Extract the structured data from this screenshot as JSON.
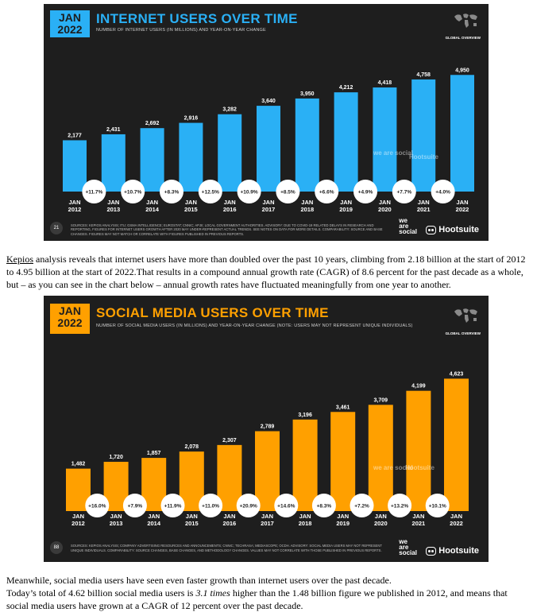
{
  "chart_data": [
    {
      "type": "bar",
      "badge": [
        "JAN",
        "2022"
      ],
      "title": "INTERNET USERS OVER TIME",
      "subtitle": "NUMBER OF INTERNET USERS (IN MILLIONS) AND YEAR-ON-YEAR CHANGE",
      "corner_label": "GLOBAL OVERVIEW",
      "categories": [
        "JAN 2012",
        "JAN 2013",
        "JAN 2014",
        "JAN 2015",
        "JAN 2016",
        "JAN 2017",
        "JAN 2018",
        "JAN 2019",
        "JAN 2020",
        "JAN 2021",
        "JAN 2022"
      ],
      "values": [
        2177,
        2431,
        2692,
        2916,
        3282,
        3640,
        3950,
        4212,
        4418,
        4758,
        4950
      ],
      "value_labels": [
        "2,177",
        "2,431",
        "2,692",
        "2,916",
        "3,282",
        "3,640",
        "3,950",
        "4,212",
        "4,418",
        "4,758",
        "4,950"
      ],
      "yoy_change": [
        "+11.7%",
        "+10.7%",
        "+8.3%",
        "+12.5%",
        "+10.9%",
        "+8.5%",
        "+6.6%",
        "+4.9%",
        "+7.7%",
        "+4.0%"
      ],
      "bar_color": "#2ab0f5",
      "ylim": [
        0,
        5600
      ],
      "page_number": "21",
      "footer_sources": "SOURCES: KEPIOS ANALYSIS; ITU; GSMA INTELLIGENCE; EUROSTAT; CNNIC; APJII; LOCAL GOVERNMENT AUTHORITIES. ADVISORY: DUE TO COVID-19 RELATED DELAYS IN RESEARCH AND REPORTING, FIGURES FOR INTERNET USERS GROWTH AFTER 2020 MAY UNDER-REPRESENT ACTUAL TRENDS. SEE NOTES ON DATA FOR MORE DETAILS. COMPARABILITY: SOURCE AND BASE CHANGES. FIGURES MAY NOT MATCH OR CORRELATE WITH FIGURES PUBLISHED IN PREVIOUS REPORTS."
    },
    {
      "type": "bar",
      "badge": [
        "JAN",
        "2022"
      ],
      "title": "SOCIAL MEDIA USERS OVER TIME",
      "subtitle": "NUMBER OF SOCIAL MEDIA USERS (IN MILLIONS) AND YEAR-ON-YEAR CHANGE (NOTE: USERS MAY NOT REPRESENT UNIQUE INDIVIDUALS)",
      "corner_label": "GLOBAL OVERVIEW",
      "categories": [
        "JAN 2012",
        "JAN 2013",
        "JAN 2014",
        "JAN 2015",
        "JAN 2016",
        "JAN 2017",
        "JAN 2018",
        "JAN 2019",
        "JAN 2020",
        "JAN 2021",
        "JAN 2022"
      ],
      "values": [
        1482,
        1720,
        1857,
        2078,
        2307,
        2789,
        3196,
        3461,
        3709,
        4199,
        4623
      ],
      "value_labels": [
        "1,482",
        "1,720",
        "1,857",
        "2,078",
        "2,307",
        "2,789",
        "3,196",
        "3,461",
        "3,709",
        "4,199",
        "4,623"
      ],
      "yoy_change": [
        "+16.0%",
        "+7.9%",
        "+11.9%",
        "+11.0%",
        "+20.9%",
        "+14.6%",
        "+8.3%",
        "+7.2%",
        "+13.2%",
        "+10.1%"
      ],
      "bar_color": "#ffa000",
      "ylim": [
        0,
        5300
      ],
      "page_number": "88",
      "footer_sources": "SOURCES: KEPIOS ANALYSIS; COMPANY ADVERTISING RESOURCES AND ANNOUNCEMENTS; CNNIC; TECHRASA; MEDIASCOPE; OCDH. ADVISORY: SOCIAL MEDIA USERS MAY NOT REPRESENT UNIQUE INDIVIDUALS. COMPARABILITY: SOURCE CHANGES, BASE CHANGES, AND METHODOLOGY CHANGES. VALUES MAY NOT CORRELATE WITH THOSE PUBLISHED IN PREVIOUS REPORTS."
    }
  ],
  "brand": {
    "wearesocial": "we are social",
    "hootsuite": "Hootsuite"
  },
  "paragraph1": {
    "link": "Kepios",
    "text": " analysis reveals that internet users have more than doubled over the past 10 years, climbing from 2.18 billion at the start of 2012 to 4.95 billion at the start of 2022.That results in a compound annual growth rate (CAGR) of 8.6 percent for the past decade as a whole, but – as you can see in the chart below – annual growth rates have fluctuated meaningfully from one year to another."
  },
  "paragraph2": {
    "line1": "Meanwhile, social media users have seen even faster growth than internet users over the past decade.",
    "line2_a": "Today’s total of 4.62 billion social media users is ",
    "line2_em": "3.1 times",
    "line2_b": " higher than the 1.48 billion figure we published in 2012, and means that social media users have grown at a CAGR of 12 percent over the past decade."
  }
}
